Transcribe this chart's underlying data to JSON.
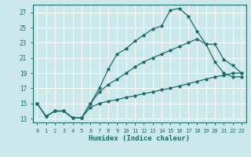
{
  "xlabel": "Humidex (Indice chaleur)",
  "bg_color": "#cde8ea",
  "grid_color": "#ffffff",
  "line_color": "#1e6b6b",
  "marker": "*",
  "xlim": [
    -0.5,
    23.5
  ],
  "ylim": [
    12.5,
    28.0
  ],
  "xticks": [
    0,
    1,
    2,
    3,
    4,
    5,
    6,
    7,
    8,
    9,
    10,
    11,
    12,
    13,
    14,
    15,
    16,
    17,
    18,
    19,
    20,
    21,
    22,
    23
  ],
  "yticks": [
    13,
    15,
    17,
    19,
    21,
    23,
    25,
    27
  ],
  "line1_x": [
    0,
    1,
    2,
    3,
    4,
    5,
    6,
    7,
    8,
    9,
    10,
    11,
    12,
    13,
    14,
    15,
    16,
    17,
    18,
    19,
    20,
    21,
    22,
    23
  ],
  "line1_y": [
    15.0,
    13.3,
    14.0,
    14.0,
    13.1,
    13.1,
    15.0,
    17.0,
    19.5,
    21.5,
    22.2,
    23.2,
    24.0,
    24.8,
    25.2,
    27.3,
    27.5,
    26.5,
    24.5,
    22.8,
    20.5,
    19.0,
    18.5,
    18.5
  ],
  "line2_x": [
    0,
    1,
    2,
    3,
    4,
    5,
    6,
    7,
    8,
    9,
    10,
    11,
    12,
    13,
    14,
    15,
    16,
    17,
    18,
    19,
    20,
    21,
    22,
    23
  ],
  "line2_y": [
    15.0,
    13.3,
    14.0,
    14.0,
    13.1,
    13.1,
    15.0,
    16.5,
    17.5,
    18.2,
    19.0,
    19.8,
    20.5,
    21.0,
    21.5,
    22.0,
    22.5,
    23.0,
    23.5,
    22.8,
    22.8,
    20.8,
    20.0,
    19.0
  ],
  "line3_x": [
    0,
    1,
    2,
    3,
    4,
    5,
    6,
    7,
    8,
    9,
    10,
    11,
    12,
    13,
    14,
    15,
    16,
    17,
    18,
    19,
    20,
    21,
    22,
    23
  ],
  "line3_y": [
    15.0,
    13.3,
    14.0,
    14.0,
    13.1,
    13.1,
    14.5,
    15.0,
    15.3,
    15.5,
    15.8,
    16.0,
    16.3,
    16.5,
    16.8,
    17.0,
    17.3,
    17.6,
    17.9,
    18.2,
    18.5,
    18.7,
    19.0,
    19.0
  ]
}
